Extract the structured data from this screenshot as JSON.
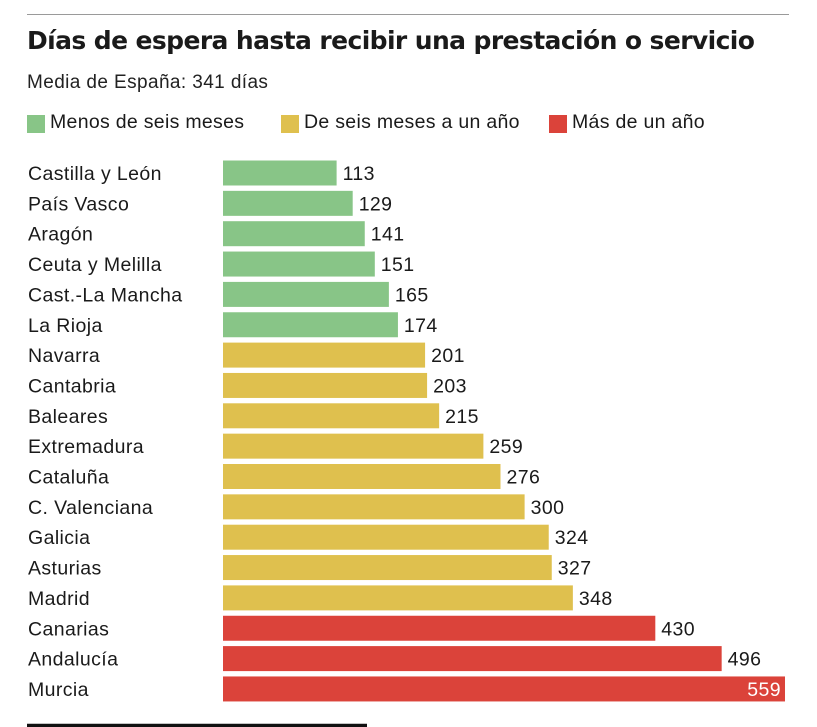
{
  "header": {
    "title": "Días de espera hasta recibir una prestación o servicio",
    "subtitle": "Media de España: 341 días"
  },
  "legend": [
    {
      "label": "Menos de seis meses",
      "color": "#88c587"
    },
    {
      "label": "De seis meses a un año",
      "color": "#dfc04e"
    },
    {
      "label": "Más de un año",
      "color": "#db433a"
    }
  ],
  "chart_data": {
    "type": "bar",
    "orientation": "horizontal",
    "title": "Días de espera hasta recibir una prestación o servicio",
    "subtitle": "Media de España: 341 días",
    "categories": [
      "Castilla y León",
      "País Vasco",
      "Aragón",
      "Ceuta y Melilla",
      "Cast.-La Mancha",
      "La Rioja",
      "Navarra",
      "Cantabria",
      "Baleares",
      "Extremadura",
      "Cataluña",
      "C. Valenciana",
      "Galicia",
      "Asturias",
      "Madrid",
      "Canarias",
      "Andalucía",
      "Murcia"
    ],
    "values": [
      113,
      129,
      141,
      151,
      165,
      174,
      201,
      203,
      215,
      259,
      276,
      300,
      324,
      327,
      348,
      430,
      496,
      559
    ],
    "groups": [
      "Menos de seis meses",
      "Menos de seis meses",
      "Menos de seis meses",
      "Menos de seis meses",
      "Menos de seis meses",
      "Menos de seis meses",
      "De seis meses a un año",
      "De seis meses a un año",
      "De seis meses a un año",
      "De seis meses a un año",
      "De seis meses a un año",
      "De seis meses a un año",
      "De seis meses a un año",
      "De seis meses a un año",
      "De seis meses a un año",
      "Más de un año",
      "Más de un año",
      "Más de un año"
    ],
    "group_colors": {
      "Menos de seis meses": "#88c587",
      "De seis meses a un año": "#dfc04e",
      "Más de un año": "#db433a"
    },
    "xlim": [
      0,
      559
    ],
    "data_labels": true,
    "grid": false,
    "legend_position": "top-left"
  }
}
